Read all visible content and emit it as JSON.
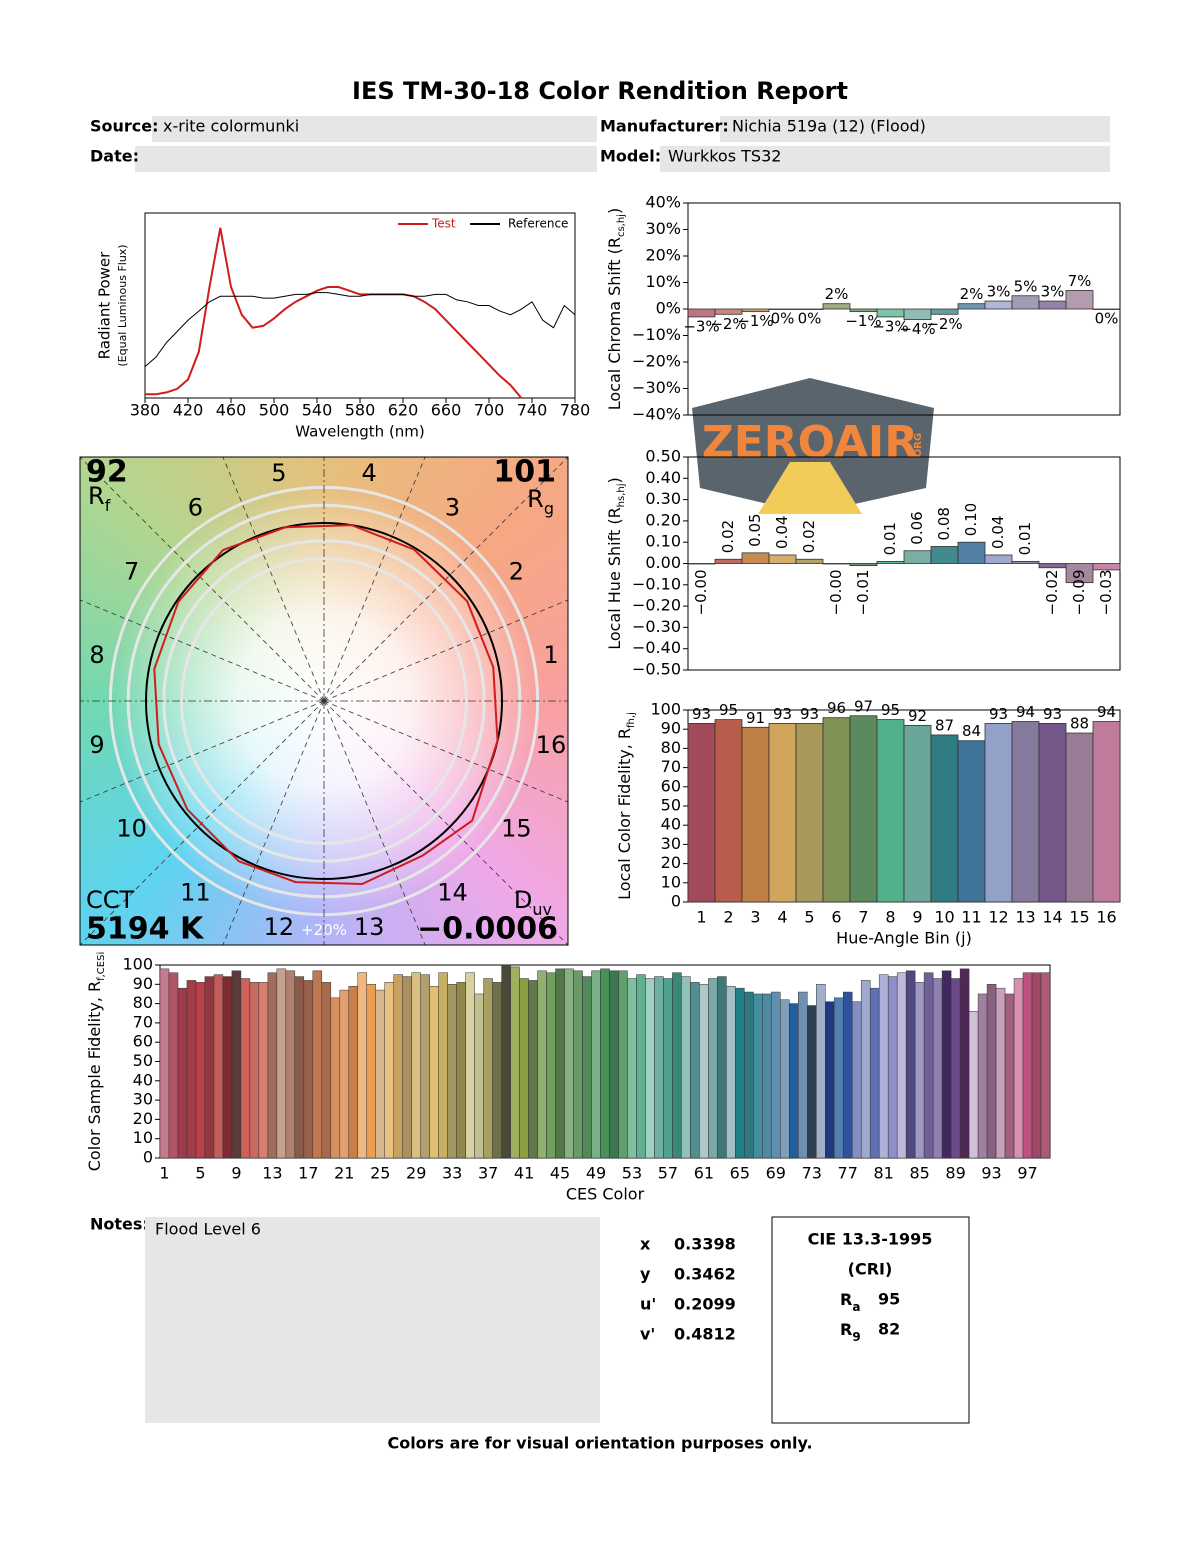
{
  "header": {
    "title": "IES TM-30-18 Color Rendition Report",
    "source_label": "Source:",
    "source": "x-rite colormunki",
    "date_label": "Date:",
    "manufacturer_label": "Manufacturer:",
    "manufacturer": "Nichia 519a (12) (Flood)",
    "model_label": "Model:",
    "model": "Wurkkos TS32"
  },
  "chart_data": [
    {
      "type": "line",
      "ylabel": "Radiant Power",
      "ylabel_note": "(Equal Luminous Flux)",
      "xlabel": "Wavelength (nm)",
      "legend": "upper right",
      "x": [
        380,
        390,
        400,
        410,
        420,
        430,
        440,
        450,
        460,
        470,
        480,
        490,
        500,
        510,
        520,
        530,
        540,
        550,
        560,
        570,
        580,
        590,
        600,
        610,
        620,
        630,
        640,
        650,
        660,
        670,
        680,
        690,
        700,
        710,
        720,
        730,
        740,
        750,
        760,
        770,
        780
      ],
      "xlim": [
        380,
        780
      ],
      "xticks": [
        380,
        420,
        460,
        500,
        540,
        580,
        620,
        660,
        700,
        740,
        780
      ],
      "ylim": [
        0,
        1
      ],
      "series": [
        {
          "name": "Test",
          "color": "#d01c1c",
          "values": [
            0.02,
            0.02,
            0.03,
            0.05,
            0.1,
            0.25,
            0.6,
            0.92,
            0.6,
            0.45,
            0.38,
            0.39,
            0.43,
            0.48,
            0.52,
            0.55,
            0.58,
            0.6,
            0.6,
            0.58,
            0.56,
            0.56,
            0.56,
            0.56,
            0.56,
            0.55,
            0.52,
            0.48,
            0.42,
            0.36,
            0.3,
            0.24,
            0.18,
            0.12,
            0.07,
            0,
            null,
            null,
            null,
            null,
            null
          ]
        },
        {
          "name": "Reference",
          "color": "#000000",
          "values": [
            0.17,
            0.22,
            0.3,
            0.36,
            0.42,
            0.47,
            0.52,
            0.55,
            0.55,
            0.55,
            0.55,
            0.54,
            0.54,
            0.55,
            0.56,
            0.56,
            0.57,
            0.57,
            0.56,
            0.55,
            0.55,
            0.56,
            0.56,
            0.56,
            0.56,
            0.55,
            0.55,
            0.56,
            0.56,
            0.53,
            0.52,
            0.5,
            0.5,
            0.47,
            0.45,
            0.48,
            0.52,
            0.42,
            0.38,
            0.5,
            0.45
          ]
        }
      ]
    },
    {
      "type": "bar",
      "ylabel_parts": [
        "Local Chroma Shift (R",
        "cs,hj",
        ")"
      ],
      "values": [
        -3,
        -2,
        -1,
        0,
        0,
        2,
        -1,
        -3,
        -4,
        -2,
        2,
        3,
        5,
        3,
        7,
        0
      ],
      "value_labels": [
        "−3%",
        "−2%",
        "−1%",
        "0%",
        "0%",
        "2%",
        "−1%",
        "−3%",
        "−4%",
        "−2%",
        "2%",
        "3%",
        "5%",
        "3%",
        "7%",
        "0%"
      ],
      "ylim": [
        -40,
        40
      ],
      "yticks": [
        {
          "value": -40,
          "label": "−40%"
        },
        {
          "value": -30,
          "label": "−30%"
        },
        {
          "value": -20,
          "label": "−20%"
        },
        {
          "value": -10,
          "label": "−10%"
        },
        {
          "value": 0,
          "label": "0%"
        },
        {
          "value": 10,
          "label": "10%"
        },
        {
          "value": 20,
          "label": "20%"
        },
        {
          "value": 30,
          "label": "30%"
        },
        {
          "value": 40,
          "label": "40%"
        }
      ],
      "colors": [
        "#a34a5a",
        "#b85c4c",
        "#c07f44",
        "#d2a55c",
        "#a8985a",
        "#7f9155",
        "#5d8a5d",
        "#4fb08a",
        "#6aa59a",
        "#2f7d82",
        "#3f7399",
        "#93a0c8",
        "#857a9c",
        "#74588a",
        "#9a7b96",
        "#c07a9c"
      ]
    },
    {
      "type": "bar",
      "ylabel_parts": [
        "Local Hue Shift (R",
        "hs,hj",
        ")"
      ],
      "values": [
        0,
        0.02,
        0.05,
        0.04,
        0.02,
        0,
        -0.01,
        0.01,
        0.06,
        0.08,
        0.1,
        0.04,
        0.01,
        -0.02,
        -0.09,
        -0.03
      ],
      "value_labels": [
        "−0.00",
        "0.02",
        "0.05",
        "0.04",
        "0.02",
        "−0.00",
        "−0.01",
        "0.01",
        "0.06",
        "0.08",
        "0.10",
        "0.04",
        "0.01",
        "−0.02",
        "−0.09",
        "−0.03"
      ],
      "ylim": [
        -0.5,
        0.5
      ],
      "yticks": [
        {
          "value": -0.5,
          "label": "−0.50"
        },
        {
          "value": -0.4,
          "label": "−0.40"
        },
        {
          "value": -0.3,
          "label": "−0.30"
        },
        {
          "value": -0.2,
          "label": "−0.20"
        },
        {
          "value": -0.1,
          "label": "−0.10"
        },
        {
          "value": 0,
          "label": "0.00"
        },
        {
          "value": 0.1,
          "label": "0.10"
        },
        {
          "value": 0.2,
          "label": "0.20"
        },
        {
          "value": 0.3,
          "label": "0.30"
        },
        {
          "value": 0.4,
          "label": "0.40"
        },
        {
          "value": 0.5,
          "label": "0.50"
        }
      ],
      "colors": [
        "#a34a5a",
        "#b85c4c",
        "#c07f44",
        "#d2a55c",
        "#a8985a",
        "#7f9155",
        "#5d8a5d",
        "#4fb08a",
        "#6aa59a",
        "#2f7d82",
        "#3f7399",
        "#93a0c8",
        "#857a9c",
        "#74588a",
        "#9a7b96",
        "#c07a9c"
      ]
    },
    {
      "type": "bar",
      "ylabel_parts": [
        "Local Color Fidelity, R",
        "fh,j"
      ],
      "xlabel": "Hue-Angle Bin (j)",
      "categories": [
        "1",
        "2",
        "3",
        "4",
        "5",
        "6",
        "7",
        "8",
        "9",
        "10",
        "11",
        "12",
        "13",
        "14",
        "15",
        "16"
      ],
      "values": [
        93,
        95,
        91,
        93,
        93,
        96,
        97,
        95,
        92,
        87,
        84,
        93,
        94,
        93,
        88,
        94
      ],
      "ylim": [
        0,
        100
      ],
      "yticks": [
        0,
        10,
        20,
        30,
        40,
        50,
        60,
        70,
        80,
        90,
        100
      ],
      "colors": [
        "#a34a5a",
        "#b85c4c",
        "#c07f44",
        "#d2a55c",
        "#a8985a",
        "#7f9155",
        "#5d8a5d",
        "#4fb08a",
        "#6aa59a",
        "#2f7d82",
        "#3f7399",
        "#93a0c8",
        "#857a9c",
        "#74588a",
        "#9a7b96",
        "#c07a9c"
      ]
    },
    {
      "type": "bar",
      "ylabel_parts": [
        "Color Sample Fidelity, R",
        "f,CESi"
      ],
      "xlabel": "CES Color",
      "categories": [
        "1",
        null,
        null,
        null,
        "5",
        null,
        null,
        null,
        "9",
        null,
        null,
        null,
        "13",
        null,
        null,
        null,
        "17",
        null,
        null,
        null,
        "21",
        null,
        null,
        null,
        "25",
        null,
        null,
        null,
        "29",
        null,
        null,
        null,
        "33",
        null,
        null,
        null,
        "37",
        null,
        null,
        null,
        "41",
        null,
        null,
        null,
        "45",
        null,
        null,
        null,
        "49",
        null,
        null,
        null,
        "53",
        null,
        null,
        null,
        "57",
        null,
        null,
        null,
        "61",
        null,
        null,
        null,
        "65",
        null,
        null,
        null,
        "69",
        null,
        null,
        null,
        "73",
        null,
        null,
        null,
        "77",
        null,
        null,
        null,
        "81",
        null,
        null,
        null,
        "85",
        null,
        null,
        null,
        "89",
        null,
        null,
        null,
        "93",
        null,
        null,
        null,
        "97",
        null,
        null
      ],
      "values": [
        98,
        96,
        88,
        92,
        91,
        94,
        95,
        94,
        97,
        93,
        91,
        91,
        96,
        98,
        97,
        94,
        92,
        97,
        91,
        83,
        87,
        89,
        96,
        90,
        87,
        91,
        95,
        94,
        96,
        95,
        89,
        96,
        90,
        91,
        96,
        85,
        93,
        91,
        100,
        99,
        93,
        92,
        97,
        96,
        98,
        98,
        97,
        94,
        97,
        98,
        97,
        97,
        93,
        95,
        93,
        94,
        93,
        96,
        94,
        91,
        90,
        93,
        94,
        89,
        88,
        86,
        85,
        85,
        86,
        82,
        80,
        86,
        79,
        90,
        81,
        83,
        86,
        81,
        92,
        88,
        95,
        94,
        96,
        97,
        91,
        96,
        93,
        97,
        93,
        98,
        76,
        85,
        90,
        88,
        85,
        93,
        96,
        96,
        96
      ],
      "ylim": [
        0,
        100
      ],
      "yticks": [
        0,
        10,
        20,
        30,
        40,
        50,
        60,
        70,
        80,
        90,
        100
      ],
      "colors": [
        "#c77a8e",
        "#b25468",
        "#9c3c4e",
        "#a33d48",
        "#b8404a",
        "#8f3a40",
        "#c45c5c",
        "#7c2c30",
        "#5a3a3a",
        "#d0605a",
        "#c86c60",
        "#d88070",
        "#a06c5c",
        "#c8a090",
        "#b08070",
        "#8c5a48",
        "#9a6048",
        "#c07850",
        "#a86a4c",
        "#d89060",
        "#e0a070",
        "#c88048",
        "#f0b880",
        "#e8a050",
        "#d8b890",
        "#e8c080",
        "#c8a060",
        "#a89060",
        "#d8c080",
        "#b0a070",
        "#e0c070",
        "#c8b060",
        "#a09860",
        "#908848",
        "#d8d0a0",
        "#c0c090",
        "#a8a060",
        "#707048",
        "#4a4a38",
        "#a0b060",
        "#8aa040",
        "#60784a",
        "#90b070",
        "#70a060",
        "#507848",
        "#88b080",
        "#6a9a68",
        "#508a58",
        "#78b088",
        "#48905a",
        "#3a7850",
        "#60a070",
        "#80c0a0",
        "#60b090",
        "#a0d0c0",
        "#70b0a0",
        "#50a090",
        "#3a8878",
        "#90c0b8",
        "#509090",
        "#b0c8c8",
        "#78a8a8",
        "#407878",
        "#a0c0c8",
        "#208088",
        "#307880",
        "#4090a0",
        "#5088a0",
        "#6090b0",
        "#80a0b8",
        "#2060a0",
        "#7090b0",
        "#304050",
        "#a0b0c8",
        "#203880",
        "#5080b0",
        "#3050a0",
        "#8090c0",
        "#a0a8d0",
        "#6070b0",
        "#b0b0d8",
        "#9090c8",
        "#c0b8d8",
        "#504880",
        "#a098c0",
        "#706098",
        "#9080b0",
        "#402860",
        "#6a4a88",
        "#502858",
        "#d0c0d8",
        "#a080a0",
        "#886080",
        "#c8a0b8",
        "#a06080",
        "#d890b0",
        "#c05080",
        "#a04868",
        "#b05878"
      ]
    },
    {
      "type": "vector",
      "categories": [
        "1",
        "2",
        "3",
        "4",
        "5",
        "6",
        "7",
        "8",
        "9",
        "10",
        "11",
        "12",
        "13",
        "14",
        "15",
        "16"
      ],
      "rings": [
        0.8,
        0.9,
        1.1,
        {
          "value": 1.2,
          "label": "+20%"
        }
      ],
      "reference": {
        "color": "#000000",
        "radius": 1
      },
      "test": {
        "color": "#d01c1c",
        "radius": [
          0.97,
          0.98,
          0.99,
          1.0,
          1.0,
          1.02,
          0.99,
          0.97,
          0.96,
          0.98,
          1.02,
          1.03,
          1.05,
          1.03,
          1.07,
          1.0
        ],
        "angle": [
          11.25,
          34.9,
          59.2,
          81.1,
          102.4,
          123.75,
          145.7,
          169.3,
          194.7,
          218.4,
          242,
          261.1,
          281.8,
          302.6,
          321.1,
          347.1
        ]
      }
    }
  ],
  "metrics": {
    "rf": {
      "value": 92,
      "symbol": "R",
      "sub": "f"
    },
    "rg": {
      "value": 101,
      "symbol": "R",
      "sub": "g"
    },
    "cct": {
      "symbol": "CCT",
      "value": 5194,
      "label": "5194 K"
    },
    "duv": {
      "symbol": "D",
      "sub": "uv",
      "value": -0.0006,
      "label": "−0.0006"
    }
  },
  "notes": {
    "label": "Notes:",
    "text": "Flood Level 6"
  },
  "chromaticity": [
    {
      "label": "x",
      "value": 0.3398
    },
    {
      "label": "y",
      "value": 0.3462
    },
    {
      "label": "u'",
      "value": 0.2099
    },
    {
      "label": "v'",
      "value": 0.4812
    }
  ],
  "cri": {
    "title": "CIE 13.3-1995",
    "subtitle": "(CRI)",
    "items": [
      {
        "symbol": "R",
        "sub": "a",
        "value": 95
      },
      {
        "symbol": "R",
        "sub": "9",
        "value": 82
      }
    ]
  },
  "footer": "Colors are for visual orientation purposes only.",
  "watermark": {
    "text": "ZEROAIR",
    "suffix": "ORG"
  }
}
